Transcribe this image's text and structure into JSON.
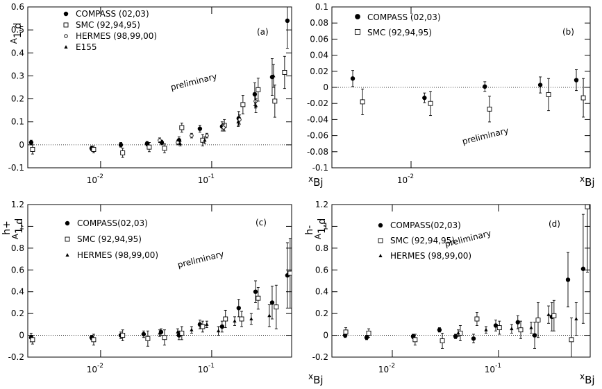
{
  "chart_data": [
    {
      "type": "scatter",
      "panel_label": "(a)",
      "annotation": "preliminary",
      "log_x": true,
      "y_label": {
        "main": "A",
        "sub": "1,d"
      },
      "x_label": {
        "main": "x",
        "sub": "Bj"
      },
      "xlim": [
        0.00221,
        0.524
      ],
      "xticks": [
        {
          "value": 0.01,
          "label": "10",
          "exponent": "-2"
        },
        {
          "value": 0.1,
          "label": "10",
          "exponent": "-1"
        }
      ],
      "ylim": [
        -0.1,
        0.6
      ],
      "yticks": [
        -0.1,
        0,
        0.1,
        0.2,
        0.3,
        0.4,
        0.5,
        0.6
      ],
      "series": [
        {
          "name": "COMPASS (02,03)",
          "marker": "circle-filled",
          "color": "#000000",
          "x": [
            0.00237,
            0.0083,
            0.0152,
            0.0262,
            0.0355,
            0.0508,
            0.0783,
            0.124,
            0.175,
            0.244,
            0.35,
            0.48
          ],
          "values": [
            0.01,
            -0.015,
            0.0,
            0.005,
            0.01,
            0.02,
            0.07,
            0.08,
            0.115,
            0.22,
            0.295,
            0.54
          ],
          "errors": [
            0.01,
            0.01,
            0.01,
            0.01,
            0.01,
            0.015,
            0.015,
            0.02,
            0.03,
            0.05,
            0.08,
            0.12
          ]
        },
        {
          "name": "SMC (92,94,95)",
          "marker": "square-open",
          "color": "#000000",
          "x": [
            0.00244,
            0.00866,
            0.0158,
            0.0274,
            0.0376,
            0.0538,
            0.0829,
            0.13,
            0.191,
            0.262,
            0.37,
            0.453
          ],
          "values": [
            -0.02,
            -0.02,
            -0.035,
            -0.01,
            -0.015,
            0.075,
            0.02,
            0.085,
            0.175,
            0.24,
            0.19,
            0.315
          ],
          "errors": [
            0.02,
            0.015,
            0.02,
            0.02,
            0.02,
            0.02,
            0.025,
            0.025,
            0.04,
            0.05,
            0.07,
            0.07
          ]
        },
        {
          "name": "HERMES (98,99,00)",
          "marker": "circle-open",
          "color": "#000000",
          "x": [
            0.034,
            0.0494,
            0.0659,
            0.0904,
            0.128,
            0.178,
            0.248
          ],
          "values": [
            0.02,
            0.01,
            0.04,
            0.04,
            0.075,
            0.11,
            0.19
          ],
          "errors": [
            0.01,
            0.01,
            0.01,
            0.01,
            0.015,
            0.02,
            0.03
          ]
        },
        {
          "name": "E155",
          "marker": "triangle",
          "color": "#000000",
          "x": [
            0.052,
            0.0866,
            0.173,
            0.25,
            0.36
          ],
          "values": [
            0.005,
            0.02,
            0.1,
            0.17,
            0.3
          ],
          "errors": [
            0.01,
            0.015,
            0.02,
            0.03,
            0.05
          ]
        }
      ]
    },
    {
      "type": "scatter",
      "panel_label": "(b)",
      "annotation": "preliminary",
      "log_x": true,
      "x_label": {
        "main": "x",
        "sub": "Bj"
      },
      "xlim": [
        0.00417,
        0.0724
      ],
      "xticks": [
        {
          "value": 0.01,
          "label": "10",
          "exponent": "-2"
        }
      ],
      "ylim": [
        -0.1,
        0.1
      ],
      "yticks": [
        -0.1,
        -0.08,
        -0.06,
        -0.04,
        -0.02,
        0,
        0.02,
        0.04,
        0.06,
        0.08,
        0.1
      ],
      "series": [
        {
          "name": "COMPASS (02,03)",
          "marker": "circle-filled",
          "color": "#000000",
          "x": [
            0.00525,
            0.0116,
            0.0226,
            0.0417,
            0.0621
          ],
          "values": [
            0.011,
            -0.013,
            0.001,
            0.003,
            0.009
          ],
          "errors": [
            0.01,
            0.006,
            0.006,
            0.01,
            0.013
          ]
        },
        {
          "name": "SMC (92,94,95)",
          "marker": "square-open",
          "color": "#000000",
          "x": [
            0.00585,
            0.0124,
            0.0238,
            0.0457,
            0.0671
          ],
          "values": [
            -0.018,
            -0.02,
            -0.027,
            -0.009,
            -0.013
          ],
          "errors": [
            0.016,
            0.015,
            0.016,
            0.02,
            0.024
          ]
        }
      ]
    },
    {
      "type": "scatter",
      "panel_label": "(c)",
      "annotation": "preliminary",
      "log_x": true,
      "y_label": {
        "main": "A",
        "sub": "1,d",
        "sup": "h+"
      },
      "x_label": {
        "main": "x",
        "sub": "Bj"
      },
      "xlim": [
        0.00221,
        0.524
      ],
      "xticks": [
        {
          "value": 0.01,
          "label": "10",
          "exponent": "-2"
        },
        {
          "value": 0.1,
          "label": "10",
          "exponent": "-1"
        }
      ],
      "ylim": [
        -0.2,
        1.2
      ],
      "yticks": [
        -0.2,
        0,
        0.2,
        0.4,
        0.6,
        0.8,
        1,
        1.2
      ],
      "series": [
        {
          "name": "COMPASS(02,03)",
          "marker": "circle-filled",
          "color": "#000000",
          "x": [
            0.00237,
            0.0083,
            0.0152,
            0.0244,
            0.035,
            0.0508,
            0.0783,
            0.124,
            0.175,
            0.248,
            0.35,
            0.48
          ],
          "values": [
            -0.02,
            -0.02,
            0.0,
            0.01,
            0.03,
            0.0,
            0.1,
            0.08,
            0.25,
            0.4,
            0.3,
            0.55
          ],
          "errors": [
            0.04,
            0.02,
            0.03,
            0.03,
            0.03,
            0.04,
            0.04,
            0.05,
            0.08,
            0.1,
            0.15,
            0.3
          ]
        },
        {
          "name": "SMC (92,94,95)",
          "marker": "square-open",
          "color": "#000000",
          "x": [
            0.00244,
            0.00866,
            0.0158,
            0.0266,
            0.0376,
            0.0538,
            0.0829,
            0.133,
            0.186,
            0.262,
            0.381,
            0.508
          ],
          "values": [
            -0.04,
            -0.04,
            0.0,
            -0.03,
            -0.02,
            0.02,
            0.08,
            0.15,
            0.15,
            0.34,
            0.26,
            0.57
          ],
          "errors": [
            0.04,
            0.05,
            0.05,
            0.07,
            0.07,
            0.06,
            0.05,
            0.08,
            0.07,
            0.1,
            0.2,
            0.32
          ]
        },
        {
          "name": "HERMES (98,99,00)",
          "marker": "triangle",
          "color": "#000000",
          "x": [
            0.034,
            0.0494,
            0.0659,
            0.0904,
            0.115,
            0.161,
            0.227,
            0.33
          ],
          "values": [
            0.02,
            0.03,
            0.05,
            0.1,
            0.04,
            0.13,
            0.15,
            0.18
          ],
          "errors": [
            0.03,
            0.03,
            0.03,
            0.03,
            0.04,
            0.04,
            0.05,
            0.1
          ]
        }
      ]
    },
    {
      "type": "scatter",
      "panel_label": "(d)",
      "annotation": "preliminary",
      "log_x": true,
      "y_label": {
        "main": "A",
        "sub": "1,d",
        "sup": "h-"
      },
      "x_label": {
        "main": "x",
        "sub": "Bj"
      },
      "xlim": [
        0.0027,
        0.73
      ],
      "xticks": [
        {
          "value": 0.01,
          "label": "10",
          "exponent": "-2"
        },
        {
          "value": 0.1,
          "label": "10",
          "exponent": "-1"
        }
      ],
      "ylim": [
        -0.2,
        1.2
      ],
      "yticks": [
        -0.2,
        0,
        0.2,
        0.4,
        0.6,
        0.8,
        1,
        1.2
      ],
      "series": [
        {
          "name": "COMPASS(02,03)",
          "marker": "circle-filled",
          "color": "#000000",
          "x": [
            0.0036,
            0.00573,
            0.0157,
            0.0278,
            0.0394,
            0.0582,
            0.0942,
            0.152,
            0.219,
            0.318,
            0.451,
            0.627
          ],
          "values": [
            0.0,
            -0.02,
            -0.01,
            0.05,
            -0.01,
            -0.03,
            0.09,
            0.12,
            0.0,
            0.17,
            0.51,
            0.61
          ],
          "errors": [
            0.02,
            0.02,
            0.02,
            0.02,
            0.02,
            0.04,
            0.05,
            0.06,
            0.12,
            0.13,
            0.25,
            0.5
          ]
        },
        {
          "name": "SMC (92,94,95)",
          "marker": "square-open",
          "color": "#000000",
          "x": [
            0.00365,
            0.006,
            0.0164,
            0.0296,
            0.0437,
            0.0627,
            0.102,
            0.162,
            0.236,
            0.333,
            0.486,
            0.687
          ],
          "values": [
            0.03,
            0.02,
            -0.04,
            -0.05,
            0.02,
            0.15,
            0.07,
            0.05,
            0.14,
            0.18,
            -0.04,
            1.18
          ],
          "errors": [
            0.04,
            0.04,
            0.05,
            0.07,
            0.07,
            0.06,
            0.06,
            0.08,
            0.16,
            0.14,
            0.2,
            0.6
          ]
        },
        {
          "name": "HERMES (98,99,00)",
          "marker": "triangle",
          "color": "#000000",
          "x": [
            0.0418,
            0.0763,
            0.133,
            0.203,
            0.296,
            0.539
          ],
          "values": [
            0.02,
            0.05,
            0.06,
            0.07,
            0.19,
            0.15
          ],
          "errors": [
            0.03,
            0.03,
            0.04,
            0.05,
            0.08,
            0.15
          ]
        }
      ]
    }
  ]
}
